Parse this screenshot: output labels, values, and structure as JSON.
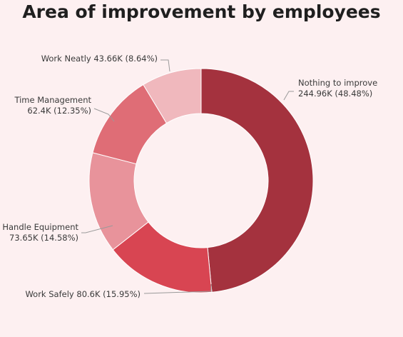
{
  "chart_data": {
    "type": "pie",
    "donut": true,
    "title": "Area of improvement by employees",
    "categories": [
      "Nothing to improve",
      "Work Safely",
      "Handle Equipment",
      "Time Management",
      "Work Neatly"
    ],
    "values": [
      244.96,
      80.6,
      73.65,
      62.4,
      43.66
    ],
    "value_labels": [
      "244.96K",
      "80.6K",
      "73.65K",
      "62.4K",
      "43.66K"
    ],
    "percent_labels": [
      "48.48%",
      "15.95%",
      "14.58%",
      "12.35%",
      "8.64%"
    ],
    "colors": [
      "#a4323e",
      "#d84552",
      "#e8939b",
      "#df6d76",
      "#f0b8bd"
    ],
    "legend": "none"
  },
  "labels": [
    {
      "lines": [
        "Nothing to improve",
        "244.96K (48.48%)"
      ]
    },
    {
      "lines": [
        "Work Safely 80.6K (15.95%)"
      ]
    },
    {
      "lines": [
        "Handle Equipment",
        "73.65K (14.58%)"
      ]
    },
    {
      "lines": [
        "Time Management",
        "62.4K (12.35%)"
      ]
    },
    {
      "lines": [
        "Work Neatly 43.66K (8.64%)"
      ]
    }
  ]
}
